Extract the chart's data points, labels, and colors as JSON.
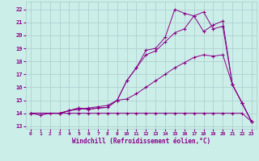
{
  "xlabel": "Windchill (Refroidissement éolien,°C)",
  "bg_color": "#cceee8",
  "grid_color": "#aacccc",
  "line_color": "#880088",
  "xlim": [
    -0.5,
    23.5
  ],
  "ylim": [
    12.8,
    22.6
  ],
  "yticks": [
    13,
    14,
    15,
    16,
    17,
    18,
    19,
    20,
    21,
    22
  ],
  "xticks": [
    0,
    1,
    2,
    3,
    4,
    5,
    6,
    7,
    8,
    9,
    10,
    11,
    12,
    13,
    14,
    15,
    16,
    17,
    18,
    19,
    20,
    21,
    22,
    23
  ],
  "series": [
    {
      "x": [
        0,
        1,
        2,
        3,
        4,
        5,
        6,
        7,
        8,
        9,
        10,
        11,
        12,
        13,
        14,
        15,
        16,
        17,
        18,
        19,
        20,
        21,
        22,
        23
      ],
      "y": [
        14.0,
        13.85,
        14.0,
        14.0,
        14.0,
        14.0,
        14.0,
        14.0,
        14.0,
        14.0,
        14.0,
        14.0,
        14.0,
        14.0,
        14.0,
        14.0,
        14.0,
        14.0,
        14.0,
        14.0,
        14.0,
        14.0,
        14.0,
        13.35
      ]
    },
    {
      "x": [
        0,
        3,
        4,
        5,
        6,
        7,
        8,
        9,
        10,
        11,
        12,
        13,
        14,
        15,
        16,
        17,
        18,
        19,
        20,
        21,
        22,
        23
      ],
      "y": [
        14.0,
        14.0,
        14.2,
        14.3,
        14.4,
        14.5,
        14.6,
        15.0,
        15.1,
        15.5,
        16.0,
        16.5,
        17.0,
        17.5,
        17.9,
        18.3,
        18.5,
        18.4,
        18.5,
        16.2,
        14.8,
        13.35
      ]
    },
    {
      "x": [
        0,
        3,
        4,
        5,
        6,
        7,
        8,
        9,
        10,
        11,
        12,
        13,
        14,
        15,
        16,
        17,
        18,
        19,
        20,
        21,
        22,
        23
      ],
      "y": [
        14.0,
        14.0,
        14.2,
        14.4,
        14.3,
        14.4,
        14.45,
        15.0,
        16.5,
        17.5,
        18.5,
        18.8,
        19.5,
        20.2,
        20.5,
        21.5,
        21.8,
        20.5,
        20.7,
        16.2,
        14.8,
        13.35
      ]
    },
    {
      "x": [
        0,
        3,
        4,
        5,
        6,
        7,
        8,
        9,
        10,
        11,
        12,
        13,
        14,
        15,
        16,
        17,
        18,
        19,
        20,
        21,
        22,
        23
      ],
      "y": [
        14.0,
        14.0,
        14.2,
        14.4,
        14.3,
        14.4,
        14.45,
        15.0,
        16.5,
        17.5,
        18.85,
        19.0,
        19.85,
        22.0,
        21.7,
        21.5,
        20.3,
        20.8,
        21.1,
        16.2,
        14.8,
        13.35
      ]
    }
  ]
}
